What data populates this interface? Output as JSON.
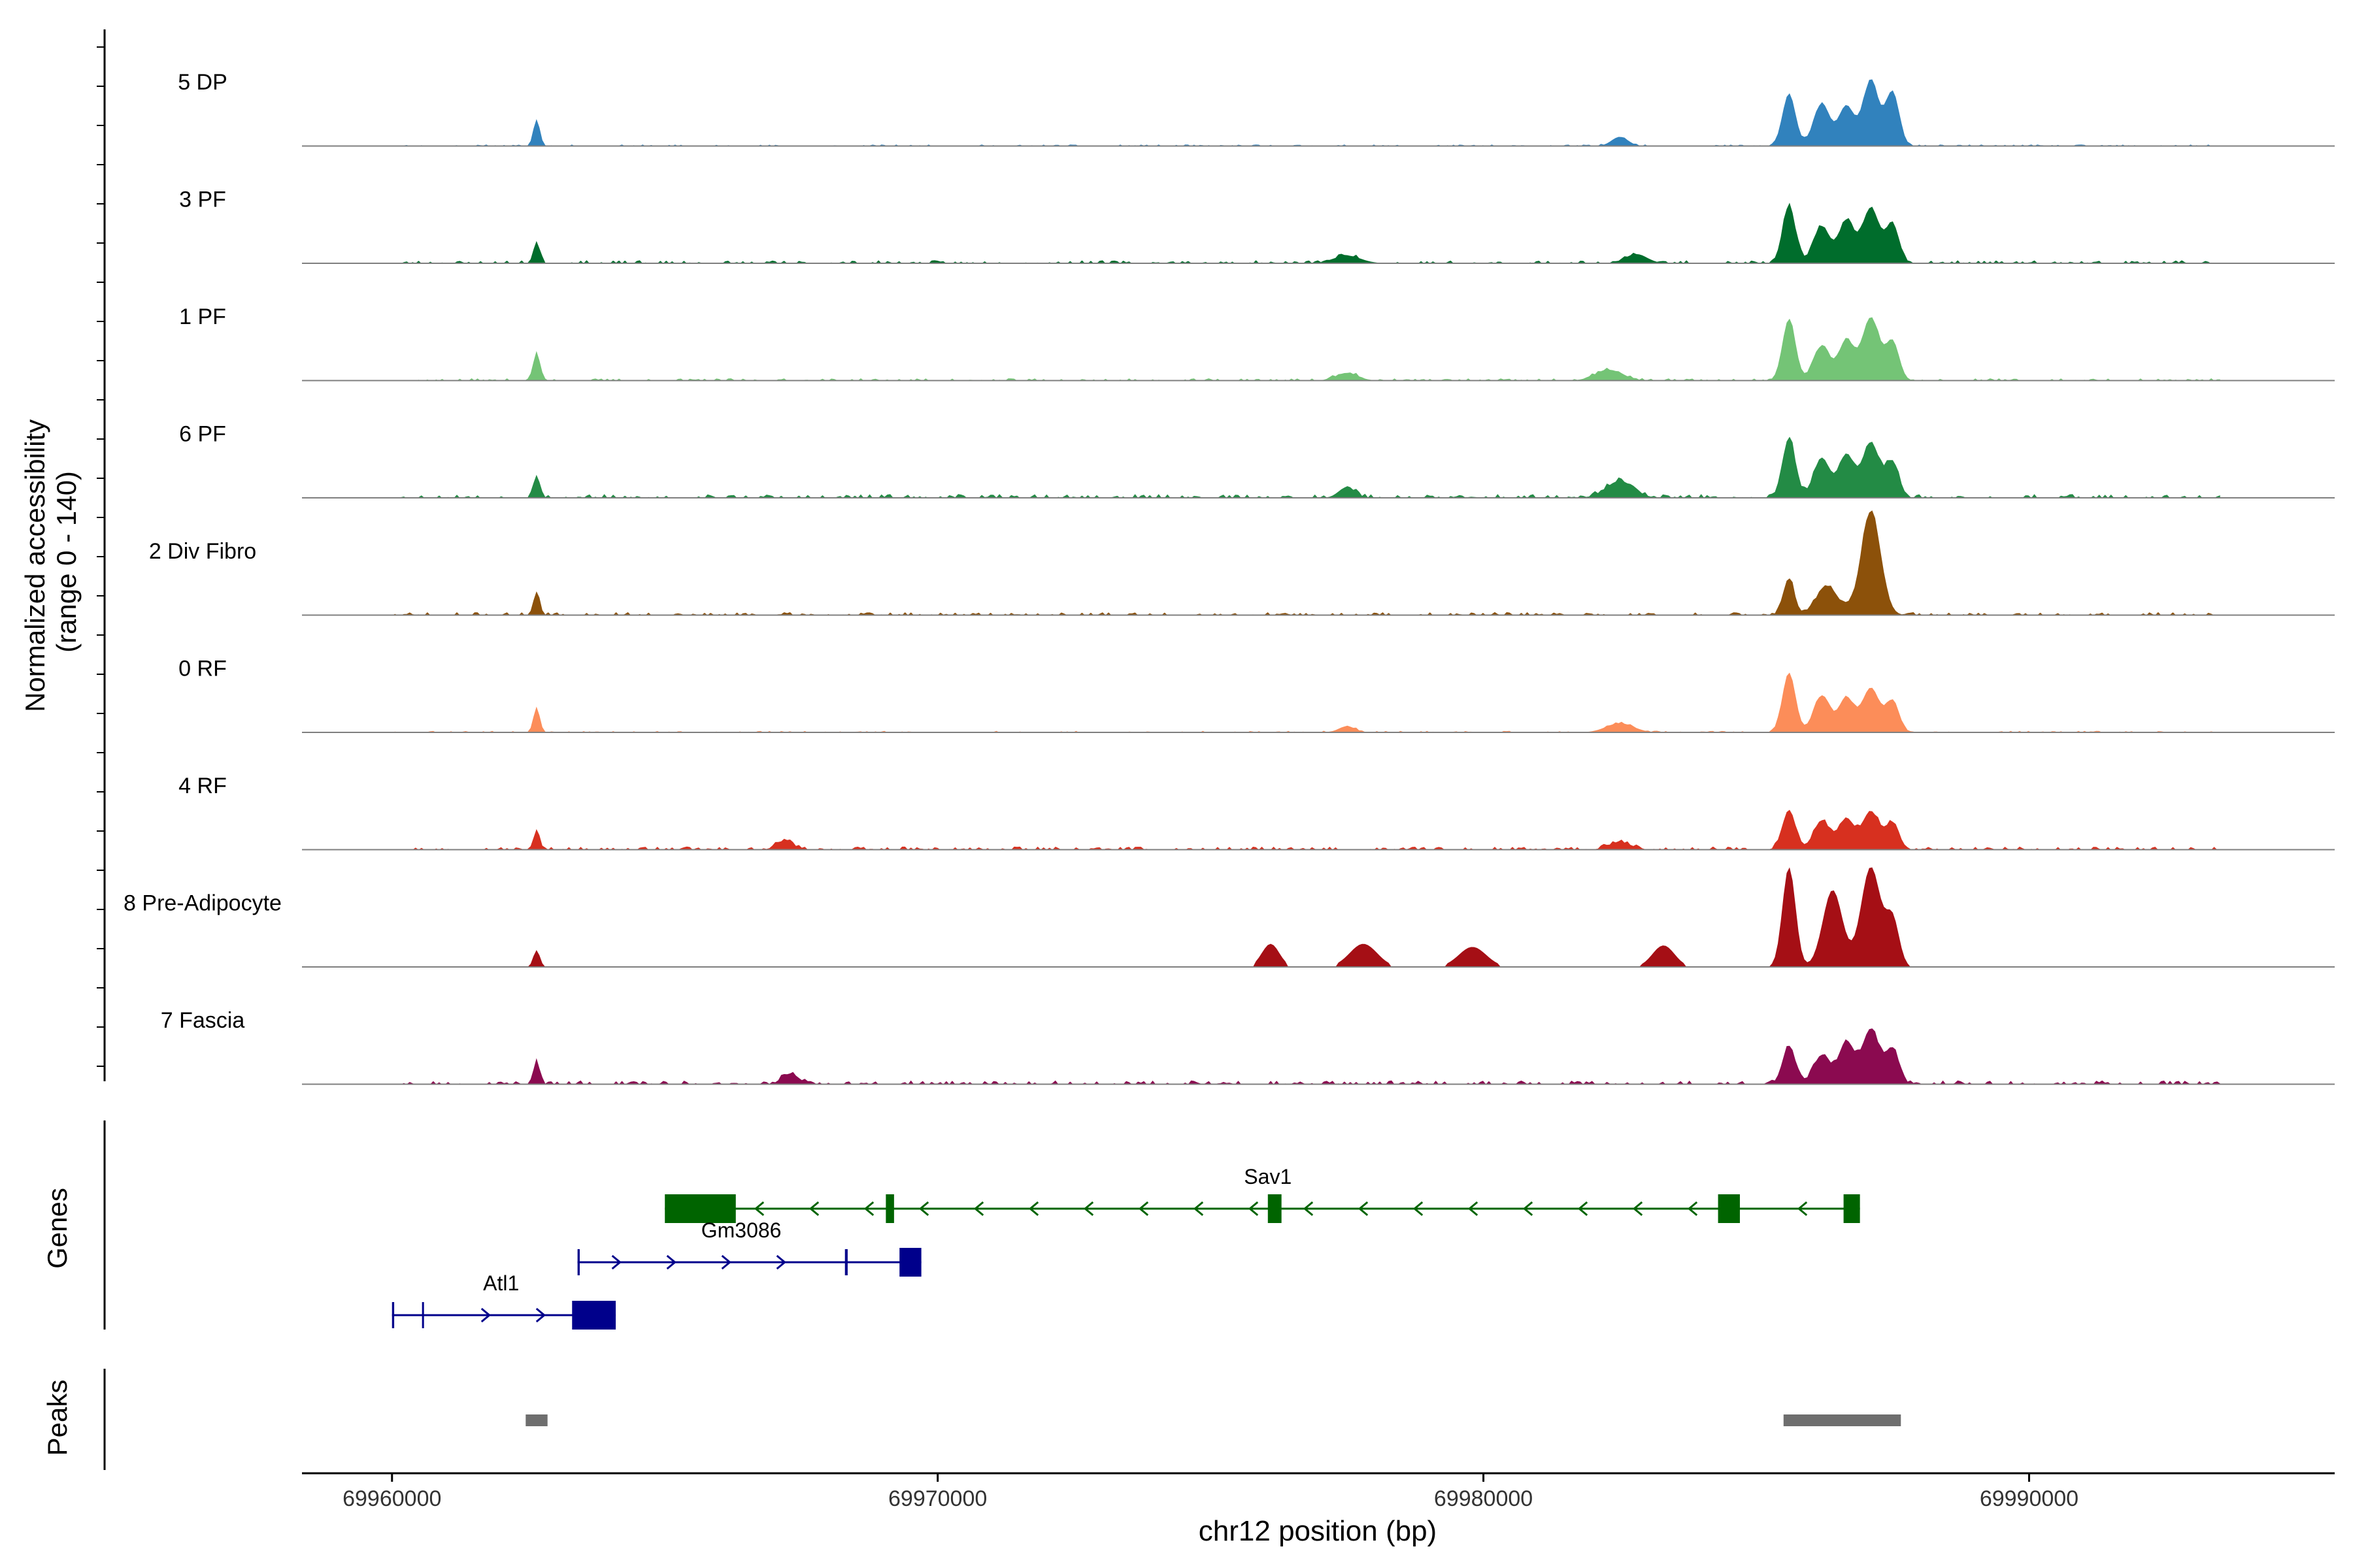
{
  "chart_data": {
    "type": "area",
    "ylabel_line1": "Normalized accessibility",
    "ylabel_line2": "(range 0 - 140)",
    "xlabel": "chr12 position (bp)",
    "xlim": [
      69958350,
      69995600
    ],
    "ylim": [
      0,
      140
    ],
    "x_ticks": [
      69960000,
      69970000,
      69980000,
      69990000
    ],
    "x_tick_labels": [
      "69960000",
      "69970000",
      "69980000",
      "69990000"
    ],
    "genes_label": "Genes",
    "peaks_label": "Peaks",
    "series": [
      {
        "name": "5 DP",
        "color": "#3182bd",
        "noise": 2,
        "seed": 11,
        "peaks": [
          [
            69962650,
            35,
            60
          ],
          [
            69982500,
            12,
            150
          ],
          [
            69985600,
            68,
            120
          ],
          [
            69986200,
            55,
            150
          ],
          [
            69986650,
            52,
            140
          ],
          [
            69987100,
            85,
            150
          ],
          [
            69987500,
            70,
            120
          ]
        ]
      },
      {
        "name": "3 PF",
        "color": "#006d2c",
        "noise": 4,
        "seed": 23,
        "peaks": [
          [
            69962650,
            28,
            60
          ],
          [
            69977500,
            10,
            250
          ],
          [
            69982800,
            12,
            200
          ],
          [
            69985600,
            75,
            120
          ],
          [
            69986200,
            48,
            150
          ],
          [
            69986650,
            55,
            140
          ],
          [
            69987100,
            72,
            160
          ],
          [
            69987500,
            50,
            120
          ]
        ]
      },
      {
        "name": "1 PF",
        "color": "#74c476",
        "noise": 3,
        "seed": 37,
        "peaks": [
          [
            69962650,
            38,
            60
          ],
          [
            69977500,
            10,
            200
          ],
          [
            69982300,
            14,
            250
          ],
          [
            69985600,
            80,
            120
          ],
          [
            69986200,
            45,
            150
          ],
          [
            69986650,
            52,
            140
          ],
          [
            69987100,
            82,
            160
          ],
          [
            69987500,
            50,
            120
          ]
        ]
      },
      {
        "name": "6 PF",
        "color": "#238b45",
        "noise": 5,
        "seed": 53,
        "peaks": [
          [
            69962650,
            30,
            60
          ],
          [
            69977500,
            14,
            150
          ],
          [
            69982500,
            22,
            250
          ],
          [
            69985600,
            78,
            120
          ],
          [
            69986200,
            52,
            150
          ],
          [
            69986650,
            56,
            140
          ],
          [
            69987100,
            72,
            160
          ],
          [
            69987500,
            46,
            120
          ]
        ]
      },
      {
        "name": "2 Div Fibro",
        "color": "#8c510a",
        "noise": 4,
        "seed": 71,
        "peaks": [
          [
            69962650,
            30,
            60
          ],
          [
            69985600,
            48,
            100
          ],
          [
            69986300,
            38,
            200
          ],
          [
            69987100,
            135,
            180
          ]
        ]
      },
      {
        "name": "0 RF",
        "color": "#fc8d59",
        "noise": 2,
        "seed": 83,
        "peaks": [
          [
            69962650,
            32,
            60
          ],
          [
            69977500,
            8,
            150
          ],
          [
            69982500,
            12,
            250
          ],
          [
            69985600,
            78,
            120
          ],
          [
            69986200,
            48,
            150
          ],
          [
            69986650,
            45,
            140
          ],
          [
            69987100,
            58,
            160
          ],
          [
            69987500,
            40,
            120
          ]
        ]
      },
      {
        "name": "4 RF",
        "color": "#d7301f",
        "noise": 4,
        "seed": 97,
        "peaks": [
          [
            69962650,
            24,
            60
          ],
          [
            69967200,
            12,
            150
          ],
          [
            69982500,
            10,
            200
          ],
          [
            69985600,
            52,
            120
          ],
          [
            69986200,
            38,
            150
          ],
          [
            69986650,
            40,
            140
          ],
          [
            69987100,
            50,
            160
          ],
          [
            69987500,
            34,
            120
          ]
        ]
      },
      {
        "name": "8 Pre-Adipocyte",
        "color": "#a50f15",
        "noise": 0,
        "seed": 109,
        "peaks": [
          [
            69962650,
            22,
            60
          ],
          [
            69976100,
            30,
            160
          ],
          [
            69977800,
            30,
            250
          ],
          [
            69979800,
            26,
            250
          ],
          [
            69983300,
            28,
            200
          ],
          [
            69985600,
            130,
            120
          ],
          [
            69986400,
            100,
            180
          ],
          [
            69987100,
            130,
            180
          ],
          [
            69987500,
            60,
            120
          ]
        ]
      },
      {
        "name": "7 Fascia",
        "color": "#8b0a50",
        "noise": 5,
        "seed": 131,
        "peaks": [
          [
            69962650,
            30,
            60
          ],
          [
            69967300,
            14,
            150
          ],
          [
            69985600,
            50,
            120
          ],
          [
            69986200,
            38,
            150
          ],
          [
            69986650,
            55,
            140
          ],
          [
            69987100,
            72,
            160
          ],
          [
            69987500,
            45,
            120
          ]
        ]
      }
    ],
    "genes": [
      {
        "name": "Sav1",
        "strand": "-",
        "start": 69965000,
        "end": 69986900,
        "row": 0,
        "color": "#006400",
        "exons": [
          [
            69965000,
            69966300
          ],
          [
            69969050,
            69969200
          ],
          [
            69976050,
            69976300
          ],
          [
            69984300,
            69984700
          ],
          [
            69986600,
            69986900
          ]
        ]
      },
      {
        "name": "Gm3086",
        "strand": "+",
        "start": 69963400,
        "end": 69969700,
        "row": 1,
        "color": "#00008b",
        "exons": [
          [
            69963400,
            69963440
          ],
          [
            69968300,
            69968350
          ],
          [
            69969300,
            69969700
          ]
        ]
      },
      {
        "name": "Atl1",
        "strand": "+",
        "start": 69960000,
        "end": 69964100,
        "row": 2,
        "color": "#00008b",
        "exons": [
          [
            69960000,
            69960040
          ],
          [
            69960550,
            69960580
          ],
          [
            69963300,
            69964100
          ]
        ]
      }
    ],
    "peaks": [
      [
        69962450,
        69962850
      ],
      [
        69985500,
        69987650
      ]
    ]
  }
}
